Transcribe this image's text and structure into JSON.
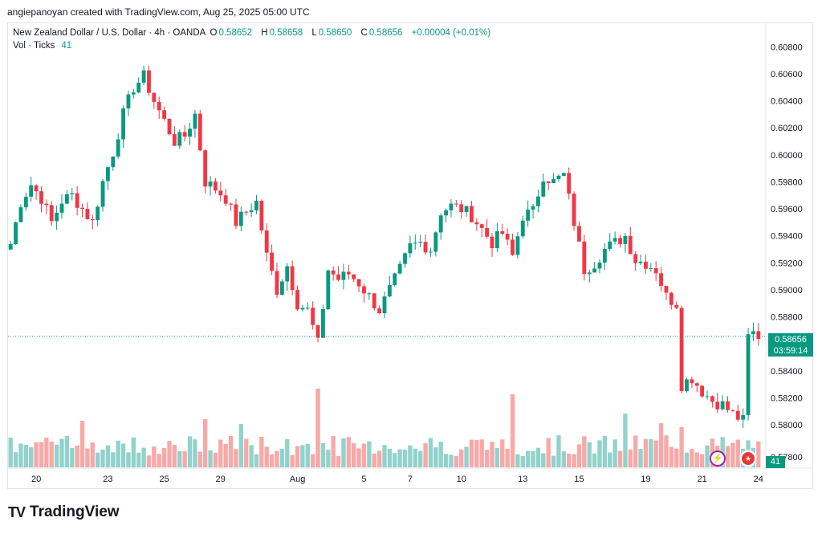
{
  "credit": "angiepanoyan created with TradingView.com, Aug 25, 2025 05:00 UTC",
  "legend": {
    "symbol": "New Zealand Dollar / U.S. Dollar · 4h · OANDA",
    "open_label": "O",
    "open": "0.58652",
    "high_label": "H",
    "high": "0.58658",
    "low_label": "L",
    "low": "0.58650",
    "close_label": "C",
    "close": "0.58656",
    "change": "+0.00004 (+0.01%)",
    "volume_label": "Vol · Ticks",
    "volume_value": "41"
  },
  "price_tag": {
    "price": "0.58656",
    "countdown": "03:59:14"
  },
  "volume_tag": "41",
  "brand": "TradingView",
  "icons": [
    "bolt-icon",
    "us-flag-icon",
    "tradingview-logo-icon"
  ],
  "colors": {
    "up": "#089981",
    "down": "#f23645",
    "vol_up": "#92d2cc",
    "vol_down": "#f7a9a7"
  },
  "chart_data": {
    "type": "candlestick",
    "title": "New Zealand Dollar / U.S. Dollar · 4h · OANDA",
    "x_ticks": [
      "20",
      "23",
      "25",
      "29",
      "Aug",
      "5",
      "7",
      "10",
      "13",
      "15",
      "19",
      "21",
      "24"
    ],
    "y_ticks": [
      "0.60800",
      "0.60600",
      "0.60400",
      "0.60200",
      "0.60000",
      "0.59800",
      "0.59600",
      "0.59400",
      "0.59200",
      "0.59000",
      "0.58800",
      "0.58400",
      "0.58200",
      "0.58000",
      "0.57800"
    ],
    "ylim": [
      0.5768,
      0.6098
    ],
    "grid": false,
    "current_price": 0.58656,
    "anchors": [
      {
        "i": 0,
        "p": 0.5934
      },
      {
        "i": 2,
        "p": 0.5965
      },
      {
        "i": 4,
        "p": 0.5978
      },
      {
        "i": 6,
        "p": 0.5968
      },
      {
        "i": 8,
        "p": 0.595
      },
      {
        "i": 10,
        "p": 0.5966
      },
      {
        "i": 12,
        "p": 0.597
      },
      {
        "i": 14,
        "p": 0.596
      },
      {
        "i": 16,
        "p": 0.595
      },
      {
        "i": 18,
        "p": 0.598
      },
      {
        "i": 20,
        "p": 0.6002
      },
      {
        "i": 22,
        "p": 0.603
      },
      {
        "i": 24,
        "p": 0.605
      },
      {
        "i": 26,
        "p": 0.6058
      },
      {
        "i": 28,
        "p": 0.604
      },
      {
        "i": 30,
        "p": 0.6025
      },
      {
        "i": 32,
        "p": 0.601
      },
      {
        "i": 34,
        "p": 0.6014
      },
      {
        "i": 36,
        "p": 0.603
      },
      {
        "i": 38,
        "p": 0.598
      },
      {
        "i": 40,
        "p": 0.5975
      },
      {
        "i": 42,
        "p": 0.5968
      },
      {
        "i": 44,
        "p": 0.595
      },
      {
        "i": 46,
        "p": 0.5958
      },
      {
        "i": 48,
        "p": 0.5965
      },
      {
        "i": 50,
        "p": 0.5925
      },
      {
        "i": 52,
        "p": 0.59
      },
      {
        "i": 54,
        "p": 0.5918
      },
      {
        "i": 56,
        "p": 0.589
      },
      {
        "i": 58,
        "p": 0.5885
      },
      {
        "i": 60,
        "p": 0.586
      },
      {
        "i": 62,
        "p": 0.5915
      },
      {
        "i": 64,
        "p": 0.5908
      },
      {
        "i": 66,
        "p": 0.5912
      },
      {
        "i": 68,
        "p": 0.5905
      },
      {
        "i": 70,
        "p": 0.5895
      },
      {
        "i": 72,
        "p": 0.5885
      },
      {
        "i": 74,
        "p": 0.59
      },
      {
        "i": 76,
        "p": 0.5915
      },
      {
        "i": 78,
        "p": 0.5932
      },
      {
        "i": 80,
        "p": 0.5935
      },
      {
        "i": 82,
        "p": 0.593
      },
      {
        "i": 84,
        "p": 0.5958
      },
      {
        "i": 86,
        "p": 0.5962
      },
      {
        "i": 88,
        "p": 0.596
      },
      {
        "i": 90,
        "p": 0.5955
      },
      {
        "i": 92,
        "p": 0.5945
      },
      {
        "i": 94,
        "p": 0.5935
      },
      {
        "i": 96,
        "p": 0.5942
      },
      {
        "i": 98,
        "p": 0.5925
      },
      {
        "i": 100,
        "p": 0.5955
      },
      {
        "i": 102,
        "p": 0.5958
      },
      {
        "i": 104,
        "p": 0.5985
      },
      {
        "i": 106,
        "p": 0.598
      },
      {
        "i": 108,
        "p": 0.5985
      },
      {
        "i": 110,
        "p": 0.595
      },
      {
        "i": 112,
        "p": 0.5915
      },
      {
        "i": 114,
        "p": 0.592
      },
      {
        "i": 116,
        "p": 0.593
      },
      {
        "i": 118,
        "p": 0.5935
      },
      {
        "i": 120,
        "p": 0.594
      },
      {
        "i": 122,
        "p": 0.5922
      },
      {
        "i": 124,
        "p": 0.592
      },
      {
        "i": 126,
        "p": 0.5915
      },
      {
        "i": 128,
        "p": 0.5895
      },
      {
        "i": 130,
        "p": 0.589
      },
      {
        "i": 131,
        "p": 0.583
      },
      {
        "i": 133,
        "p": 0.5835
      },
      {
        "i": 135,
        "p": 0.5825
      },
      {
        "i": 137,
        "p": 0.5818
      },
      {
        "i": 139,
        "p": 0.5815
      },
      {
        "i": 141,
        "p": 0.5808
      },
      {
        "i": 143,
        "p": 0.5803
      },
      {
        "i": 144,
        "p": 0.5865
      },
      {
        "i": 145,
        "p": 0.5868
      },
      {
        "i": 146,
        "p": 0.5866
      }
    ],
    "volume_spikes": [
      {
        "i": 60,
        "v": 98
      },
      {
        "i": 98,
        "v": 91
      },
      {
        "i": 38,
        "v": 60
      },
      {
        "i": 45,
        "v": 54
      },
      {
        "i": 14,
        "v": 58
      },
      {
        "i": 120,
        "v": 67
      },
      {
        "i": 127,
        "v": 55
      },
      {
        "i": 131,
        "v": 50
      }
    ]
  }
}
